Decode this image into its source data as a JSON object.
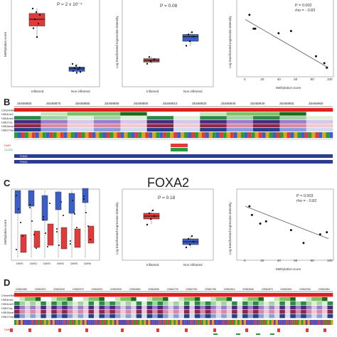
{
  "panels": {
    "A": {
      "letter": "",
      "box_left": {
        "ylabel": "Methylation score",
        "categories": [
          "Inflamed",
          "Non inflamed"
        ],
        "stat": "P = 2 x 10⁻⁴",
        "colors": [
          "#e03a3a",
          "#3a5fc8"
        ]
      },
      "box_mid": {
        "ylabel": "Log transformed expression intensity",
        "categories": [
          "Inflamed",
          "Non inflamed"
        ],
        "stat": "P = 0.08",
        "colors": [
          "#e03a3a",
          "#3a5fc8"
        ]
      },
      "scatter": {
        "ylabel": "Log transformed expression intensity",
        "xlabel": "Methylation score",
        "xticks": [
          "0",
          "20",
          "40",
          "60",
          "80",
          "100"
        ],
        "stat_p": "P    = 0.002",
        "stat_rho": "rho = - 0.83"
      }
    },
    "B": {
      "letter": "B",
      "coords": [
        "25468860",
        "25468870",
        "25468880",
        "25468890",
        "25468900",
        "25468910",
        "25468920",
        "25468930",
        "25468940",
        "25468950",
        "25468960"
      ],
      "tracks": [
        "ChromHMM",
        "H3K4me1",
        "H3K4me3",
        "H3K27ac",
        "H3K36me3",
        "H3K27me3"
      ],
      "dmr_label": "DMR",
      "ccgg_label": "CCGG",
      "dmr_color": "#e03a3a",
      "ccgg_color": "#2a9a3a",
      "bar_labels": [
        "FOXA2",
        "FOXA2"
      ]
    },
    "C": {
      "letter": "C",
      "title": "FOXA2",
      "box_left": {
        "ylabel": "Methylation score",
        "xticks": [
          "DMR1",
          "DMR2",
          "DMR3",
          "DMR4",
          "DMR5",
          "DMR6"
        ]
      },
      "box_mid": {
        "ylabel": "Log transformed expression intensity",
        "categories": [
          "Inflamed",
          "Non inflamed"
        ],
        "stat": "P = 0.18",
        "colors": [
          "#e03a3a",
          "#3a5fc8"
        ]
      },
      "scatter": {
        "ylabel": "Log transformed expression intensity",
        "xlabel": "Methylation score",
        "xticks": [
          "0",
          "20",
          "40",
          "60",
          "80",
          "100"
        ],
        "stat_p": "P    = 0.003",
        "stat_rho": "rho = - 0.82"
      }
    },
    "D": {
      "letter": "D",
      "coords": [
        "22562480",
        "22562510",
        "22562540",
        "22562570",
        "22562600",
        "22562630",
        "22562660",
        "22562690",
        "22562720",
        "22562750",
        "22562780",
        "22562810",
        "22562840",
        "22562870",
        "22562900",
        "22562930",
        "22562960"
      ],
      "tracks": [
        "ChromHMM",
        "H3K4me1",
        "H3K4me3",
        "H3K27ac",
        "H3K36me3",
        "H3K27me3"
      ],
      "dmr_label": "DMR"
    }
  },
  "chart_data": [
    {
      "type": "box",
      "panel": "A-left",
      "categories": [
        "Inflamed",
        "Non inflamed"
      ],
      "series": [
        {
          "name": "Inflamed",
          "values": [
            0.92,
            0.88,
            0.85,
            0.8,
            0.75,
            0.7,
            0.6
          ]
        },
        {
          "name": "Non inflamed",
          "values": [
            0.3,
            0.28,
            0.26,
            0.25,
            0.24,
            0.22,
            0.2,
            0.21
          ]
        }
      ],
      "ylabel": "Methylation score"
    },
    {
      "type": "box",
      "panel": "A-mid",
      "categories": [
        "Inflamed",
        "Non inflamed"
      ],
      "series": [
        {
          "name": "Inflamed",
          "values": [
            4.8,
            4.9,
            5.0,
            5.1
          ]
        },
        {
          "name": "Non inflamed",
          "values": [
            5.6,
            5.8,
            6.0,
            6.1,
            6.2
          ]
        }
      ],
      "ylabel": "Log transformed expression intensity"
    },
    {
      "type": "scatter",
      "panel": "A-right",
      "x": [
        5,
        10,
        12,
        40,
        55,
        85,
        95,
        98
      ],
      "y": [
        9.6,
        9.0,
        9.0,
        8.8,
        8.9,
        7.8,
        7.5,
        7.3
      ],
      "xlabel": "Methylation score",
      "ylabel": "Log transformed expression intensity",
      "xlim": [
        0,
        100
      ],
      "trend": [
        [
          0,
          9.4
        ],
        [
          100,
          7.3
        ]
      ]
    },
    {
      "type": "box",
      "panel": "C-mid",
      "categories": [
        "Inflamed",
        "Non inflamed"
      ],
      "series": [
        {
          "name": "Inflamed",
          "values": [
            6.6,
            6.8,
            6.9,
            7.0,
            7.1
          ]
        },
        {
          "name": "Non inflamed",
          "values": [
            5.8,
            5.9,
            6.0,
            6.1,
            6.2
          ]
        }
      ],
      "ylabel": "Log transformed expression intensity"
    },
    {
      "type": "scatter",
      "panel": "C-right",
      "x": [
        5,
        8,
        18,
        25,
        55,
        70,
        90,
        98
      ],
      "y": [
        7.3,
        6.9,
        6.5,
        6.6,
        6.2,
        5.6,
        6.0,
        6.1
      ],
      "xlabel": "Methylation score",
      "ylabel": "Log transformed expression intensity",
      "xlim": [
        0,
        100
      ],
      "trend": [
        [
          0,
          7.3
        ],
        [
          100,
          5.8
        ]
      ]
    }
  ]
}
